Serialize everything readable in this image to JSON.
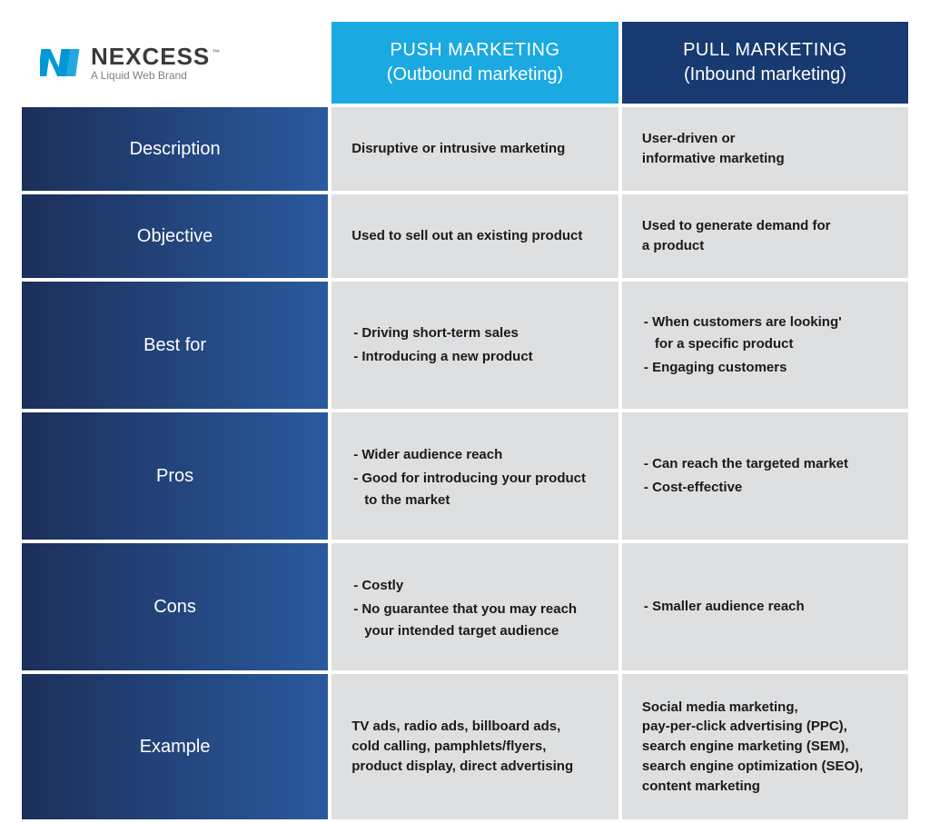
{
  "brand": {
    "name": "NEXCESS",
    "tagline": "A Liquid Web Brand",
    "tm": "™",
    "logo_color": "#0098d7"
  },
  "colors": {
    "push_header_bg": "#1aa9e0",
    "pull_header_bg": "#173a70",
    "row_header_gradient_from": "#1c2f5a",
    "row_header_gradient_to": "#2a5a9e",
    "cell_bg": "#dedfe1",
    "cell_text": "#1a1a1a",
    "header_text": "#ffffff"
  },
  "columns": {
    "push": {
      "title": "PUSH MARKETING",
      "subtitle": "(Outbound marketing)"
    },
    "pull": {
      "title": "PULL MARKETING",
      "subtitle": "(Inbound marketing)"
    }
  },
  "rows": [
    {
      "key": "description",
      "label": "Description",
      "push": {
        "type": "text",
        "lines": [
          "Disruptive or intrusive marketing"
        ]
      },
      "pull": {
        "type": "text",
        "lines": [
          "User-driven or",
          "informative marketing"
        ]
      }
    },
    {
      "key": "objective",
      "label": "Objective",
      "push": {
        "type": "text",
        "lines": [
          "Used to sell out an existing product"
        ]
      },
      "pull": {
        "type": "text",
        "lines": [
          "Used to generate demand for",
          "a product"
        ]
      }
    },
    {
      "key": "best_for",
      "label": "Best for",
      "push": {
        "type": "bullets",
        "items": [
          [
            "Driving short-term sales"
          ],
          [
            "Introducing a new product"
          ]
        ]
      },
      "pull": {
        "type": "bullets",
        "items": [
          [
            "When customers are looking'",
            "for a specific product"
          ],
          [
            "Engaging customers"
          ]
        ]
      }
    },
    {
      "key": "pros",
      "label": "Pros",
      "push": {
        "type": "bullets",
        "items": [
          [
            "Wider audience reach"
          ],
          [
            "Good for introducing your product",
            "to the market"
          ]
        ]
      },
      "pull": {
        "type": "bullets",
        "items": [
          [
            "Can reach the targeted market"
          ],
          [
            "Cost-effective"
          ]
        ]
      }
    },
    {
      "key": "cons",
      "label": "Cons",
      "push": {
        "type": "bullets",
        "items": [
          [
            "Costly"
          ],
          [
            "No guarantee that you may reach",
            "your intended target audience"
          ]
        ]
      },
      "pull": {
        "type": "bullets",
        "items": [
          [
            "Smaller audience reach"
          ]
        ]
      }
    },
    {
      "key": "example",
      "label": "Example",
      "push": {
        "type": "text",
        "lines": [
          "TV ads, radio ads, billboard ads,",
          "cold calling, pamphlets/flyers,",
          "product display, direct advertising"
        ]
      },
      "pull": {
        "type": "text",
        "lines": [
          "Social media marketing,",
          "pay-per-click advertising (PPC),",
          "search engine marketing (SEM),",
          "search engine optimization (SEO),",
          "content marketing"
        ]
      }
    }
  ]
}
